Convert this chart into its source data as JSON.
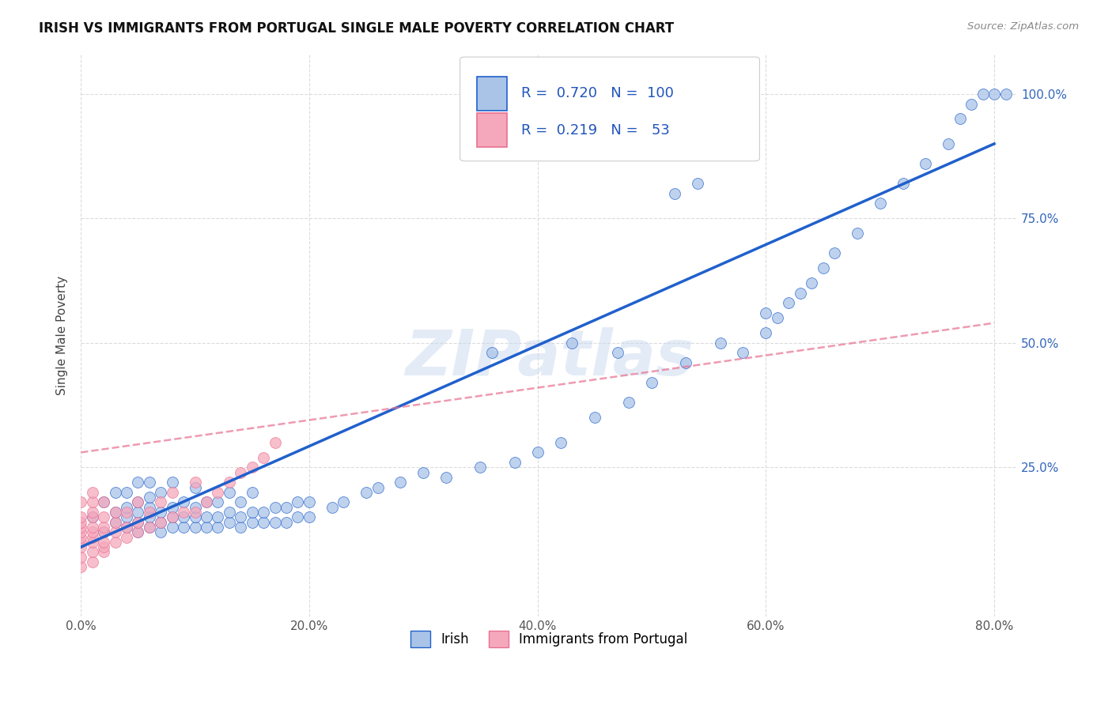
{
  "title": "IRISH VS IMMIGRANTS FROM PORTUGAL SINGLE MALE POVERTY CORRELATION CHART",
  "source": "Source: ZipAtlas.com",
  "ylabel": "Single Male Poverty",
  "xlim": [
    0.0,
    0.82
  ],
  "ylim": [
    -0.05,
    1.08
  ],
  "xtick_labels": [
    "0.0%",
    "20.0%",
    "40.0%",
    "60.0%",
    "80.0%"
  ],
  "xtick_vals": [
    0.0,
    0.2,
    0.4,
    0.6,
    0.8
  ],
  "ytick_labels": [
    "25.0%",
    "50.0%",
    "75.0%",
    "100.0%"
  ],
  "ytick_vals": [
    0.25,
    0.5,
    0.75,
    1.0
  ],
  "R_irish": 0.72,
  "N_irish": 100,
  "R_portugal": 0.219,
  "N_portugal": 53,
  "legend_label_irish": "Irish",
  "legend_label_portugal": "Immigrants from Portugal",
  "color_irish": "#aac4e8",
  "color_portugal": "#f5a8bc",
  "line_color_irish": "#2060cc",
  "line_color_portugal": "#e87090",
  "watermark": "ZIPatlas",
  "background_color": "#ffffff",
  "grid_color": "#d8d8d8",
  "irish_x": [
    0.01,
    0.02,
    0.02,
    0.03,
    0.03,
    0.03,
    0.04,
    0.04,
    0.04,
    0.04,
    0.05,
    0.05,
    0.05,
    0.05,
    0.05,
    0.06,
    0.06,
    0.06,
    0.06,
    0.06,
    0.07,
    0.07,
    0.07,
    0.07,
    0.08,
    0.08,
    0.08,
    0.08,
    0.09,
    0.09,
    0.09,
    0.1,
    0.1,
    0.1,
    0.1,
    0.11,
    0.11,
    0.11,
    0.12,
    0.12,
    0.12,
    0.13,
    0.13,
    0.13,
    0.14,
    0.14,
    0.14,
    0.15,
    0.15,
    0.15,
    0.16,
    0.16,
    0.17,
    0.17,
    0.18,
    0.18,
    0.19,
    0.19,
    0.2,
    0.2,
    0.22,
    0.23,
    0.25,
    0.26,
    0.28,
    0.3,
    0.32,
    0.35,
    0.38,
    0.4,
    0.42,
    0.45,
    0.48,
    0.5,
    0.53,
    0.56,
    0.58,
    0.6,
    0.6,
    0.61,
    0.62,
    0.63,
    0.64,
    0.65,
    0.66,
    0.68,
    0.7,
    0.72,
    0.74,
    0.76,
    0.77,
    0.78,
    0.79,
    0.8,
    0.81,
    0.52,
    0.54,
    0.47,
    0.43,
    0.36
  ],
  "irish_y": [
    0.15,
    0.12,
    0.18,
    0.14,
    0.16,
    0.2,
    0.13,
    0.15,
    0.17,
    0.2,
    0.12,
    0.14,
    0.16,
    0.18,
    0.22,
    0.13,
    0.15,
    0.17,
    0.19,
    0.22,
    0.12,
    0.14,
    0.16,
    0.2,
    0.13,
    0.15,
    0.17,
    0.22,
    0.13,
    0.15,
    0.18,
    0.13,
    0.15,
    0.17,
    0.21,
    0.13,
    0.15,
    0.18,
    0.13,
    0.15,
    0.18,
    0.14,
    0.16,
    0.2,
    0.13,
    0.15,
    0.18,
    0.14,
    0.16,
    0.2,
    0.14,
    0.16,
    0.14,
    0.17,
    0.14,
    0.17,
    0.15,
    0.18,
    0.15,
    0.18,
    0.17,
    0.18,
    0.2,
    0.21,
    0.22,
    0.24,
    0.23,
    0.25,
    0.26,
    0.28,
    0.3,
    0.35,
    0.38,
    0.42,
    0.46,
    0.5,
    0.48,
    0.52,
    0.56,
    0.55,
    0.58,
    0.6,
    0.62,
    0.65,
    0.68,
    0.72,
    0.78,
    0.82,
    0.86,
    0.9,
    0.95,
    0.98,
    1.0,
    1.0,
    1.0,
    0.8,
    0.82,
    0.48,
    0.5,
    0.48
  ],
  "portugal_x": [
    0.0,
    0.0,
    0.0,
    0.0,
    0.0,
    0.0,
    0.0,
    0.0,
    0.0,
    0.0,
    0.01,
    0.01,
    0.01,
    0.01,
    0.01,
    0.01,
    0.01,
    0.01,
    0.01,
    0.01,
    0.02,
    0.02,
    0.02,
    0.02,
    0.02,
    0.02,
    0.02,
    0.03,
    0.03,
    0.03,
    0.03,
    0.04,
    0.04,
    0.04,
    0.05,
    0.05,
    0.05,
    0.06,
    0.06,
    0.07,
    0.07,
    0.08,
    0.08,
    0.09,
    0.1,
    0.1,
    0.11,
    0.12,
    0.13,
    0.14,
    0.15,
    0.16,
    0.17
  ],
  "portugal_y": [
    0.05,
    0.07,
    0.09,
    0.1,
    0.11,
    0.12,
    0.13,
    0.14,
    0.15,
    0.18,
    0.06,
    0.08,
    0.1,
    0.11,
    0.12,
    0.13,
    0.15,
    0.16,
    0.18,
    0.2,
    0.08,
    0.09,
    0.1,
    0.12,
    0.13,
    0.15,
    0.18,
    0.1,
    0.12,
    0.14,
    0.16,
    0.11,
    0.13,
    0.16,
    0.12,
    0.14,
    0.18,
    0.13,
    0.16,
    0.14,
    0.18,
    0.15,
    0.2,
    0.16,
    0.16,
    0.22,
    0.18,
    0.2,
    0.22,
    0.24,
    0.25,
    0.27,
    0.3
  ],
  "irish_line_x0": 0.0,
  "irish_line_y0": 0.09,
  "irish_line_x1": 0.8,
  "irish_line_y1": 0.9,
  "portugal_line_x0": 0.0,
  "portugal_line_y0": 0.28,
  "portugal_line_x1": 0.8,
  "portugal_line_y1": 0.54
}
